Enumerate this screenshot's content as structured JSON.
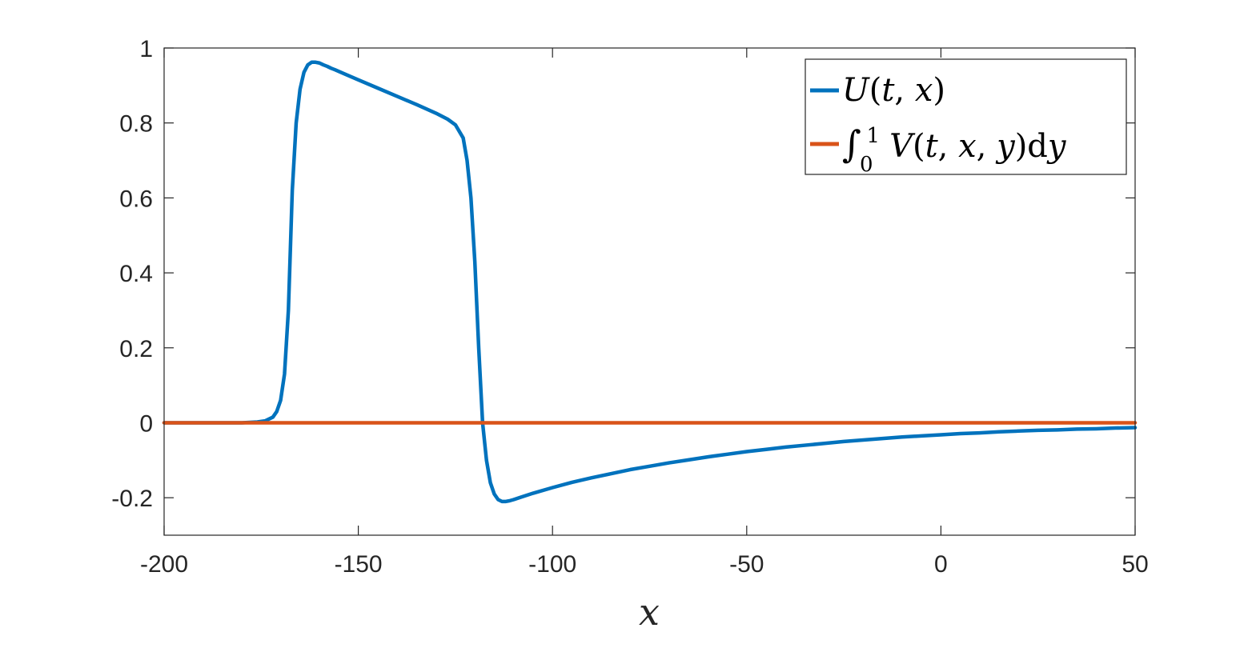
{
  "chart_data": {
    "type": "line",
    "xlabel": "x",
    "xlim": [
      -200,
      50
    ],
    "ylim": [
      -0.3,
      1
    ],
    "xticks": [
      -200,
      -150,
      -100,
      -50,
      0,
      50
    ],
    "yticks": [
      -0.2,
      0,
      0.2,
      0.4,
      0.6,
      0.8,
      1
    ],
    "xtick_labels": [
      "-200",
      "-150",
      "-100",
      "-50",
      "0",
      "50"
    ],
    "ytick_labels": [
      "-0.2",
      "0",
      "0.2",
      "0.4",
      "0.6",
      "0.8",
      "1"
    ],
    "grid": false,
    "legend_position": "top-right",
    "series": [
      {
        "name": "U(t, x)",
        "color": "#0072BD",
        "x": [
          -200,
          -180,
          -176,
          -174,
          -172,
          -171,
          -170,
          -169,
          -168,
          -167,
          -166,
          -165,
          -164,
          -163,
          -162,
          -161,
          -160,
          -159,
          -158,
          -157,
          -156,
          -154,
          -150,
          -145,
          -140,
          -135,
          -130,
          -127,
          -125,
          -123,
          -122,
          -121,
          -120,
          -119,
          -118,
          -117,
          -116,
          -115,
          -114,
          -113,
          -112,
          -111,
          -110,
          -108,
          -105,
          -100,
          -95,
          -90,
          -85,
          -80,
          -75,
          -70,
          -65,
          -60,
          -55,
          -50,
          -45,
          -40,
          -35,
          -30,
          -25,
          -20,
          -15,
          -10,
          -5,
          0,
          5,
          10,
          15,
          20,
          25,
          30,
          35,
          40,
          45,
          50
        ],
        "y": [
          0,
          0,
          0.002,
          0.005,
          0.015,
          0.03,
          0.06,
          0.13,
          0.3,
          0.62,
          0.8,
          0.89,
          0.935,
          0.955,
          0.962,
          0.962,
          0.96,
          0.955,
          0.951,
          0.946,
          0.942,
          0.933,
          0.915,
          0.893,
          0.871,
          0.849,
          0.826,
          0.81,
          0.795,
          0.76,
          0.7,
          0.6,
          0.43,
          0.2,
          0.0,
          -0.1,
          -0.16,
          -0.19,
          -0.205,
          -0.21,
          -0.21,
          -0.208,
          -0.205,
          -0.198,
          -0.188,
          -0.173,
          -0.159,
          -0.147,
          -0.136,
          -0.125,
          -0.116,
          -0.107,
          -0.099,
          -0.091,
          -0.084,
          -0.077,
          -0.071,
          -0.065,
          -0.06,
          -0.055,
          -0.05,
          -0.046,
          -0.042,
          -0.038,
          -0.035,
          -0.032,
          -0.029,
          -0.027,
          -0.024,
          -0.022,
          -0.02,
          -0.019,
          -0.017,
          -0.016,
          -0.014,
          -0.013
        ]
      },
      {
        "name": "∫₀¹ V(t, x, y)dy",
        "color": "#D95319",
        "x": [
          -200,
          50
        ],
        "y": [
          0,
          0
        ]
      }
    ]
  }
}
